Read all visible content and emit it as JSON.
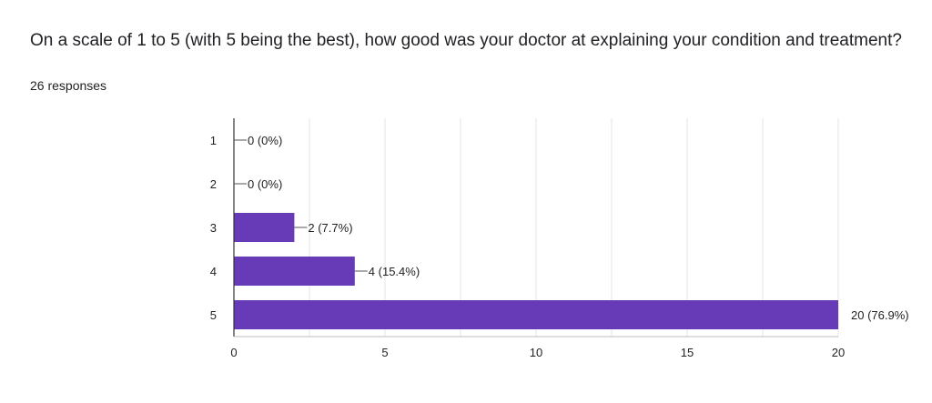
{
  "question": {
    "title": "On a scale of 1 to 5 (with 5 being the best), how good was your doctor at explaining your condition and treatment?",
    "responses": "26 responses"
  },
  "colors": {
    "bar": "#673ab7",
    "grid": "#e6e6e6",
    "axis": "#333333"
  },
  "chart_data": {
    "type": "bar",
    "orientation": "horizontal",
    "categories": [
      "1",
      "2",
      "3",
      "4",
      "5"
    ],
    "values": [
      0,
      0,
      2,
      4,
      20
    ],
    "data_labels": [
      "0 (0%)",
      "0 (0%)",
      "2 (7.7%)",
      "4 (15.4%)",
      "20 (76.9%)"
    ],
    "xticks": [
      0,
      5,
      10,
      15,
      20
    ],
    "xlim": [
      0,
      20
    ],
    "grid": true
  }
}
